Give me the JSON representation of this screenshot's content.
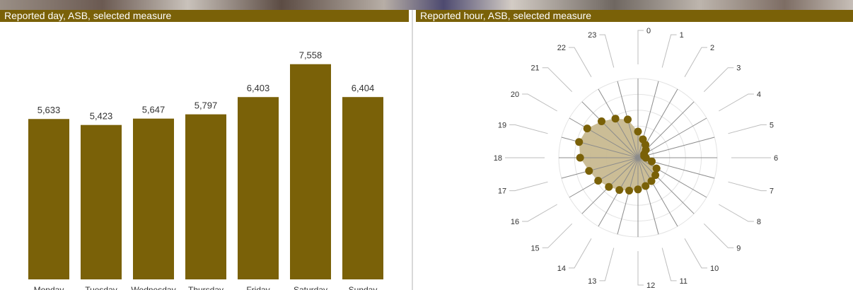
{
  "panels": {
    "left_title": "Reported day, ASB, selected measure",
    "right_title": "Reported hour, ASB, selected measure"
  },
  "colors": {
    "accent": "#7a6108",
    "area_fill": "#c8b990",
    "radar_point": "#7a6108"
  },
  "chart_data": [
    {
      "type": "bar",
      "title": "Reported day, ASB, selected measure",
      "categories": [
        "Monday",
        "Tuesday",
        "Wednesday",
        "Thursday",
        "Friday",
        "Saturday",
        "Sunday"
      ],
      "values": [
        5633,
        5423,
        5647,
        5797,
        6403,
        7558,
        6404
      ],
      "value_labels": [
        "5,633",
        "5,423",
        "5,647",
        "5,797",
        "6,403",
        "7,558",
        "6,404"
      ],
      "ylim": [
        0,
        7800
      ]
    },
    {
      "type": "radar",
      "title": "Reported hour, ASB, selected measure",
      "categories": [
        "0",
        "1",
        "2",
        "3",
        "4",
        "5",
        "6",
        "7",
        "8",
        "9",
        "10",
        "11",
        "12",
        "13",
        "14",
        "15",
        "16",
        "17",
        "18",
        "19",
        "20",
        "21",
        "22",
        "23"
      ],
      "values": [
        0.33,
        0.24,
        0.19,
        0.14,
        0.09,
        0.08,
        0.1,
        0.18,
        0.27,
        0.31,
        0.34,
        0.37,
        0.4,
        0.43,
        0.47,
        0.52,
        0.58,
        0.64,
        0.73,
        0.77,
        0.74,
        0.65,
        0.57,
        0.5
      ],
      "rlim": [
        0,
        1
      ],
      "grid": true
    }
  ]
}
